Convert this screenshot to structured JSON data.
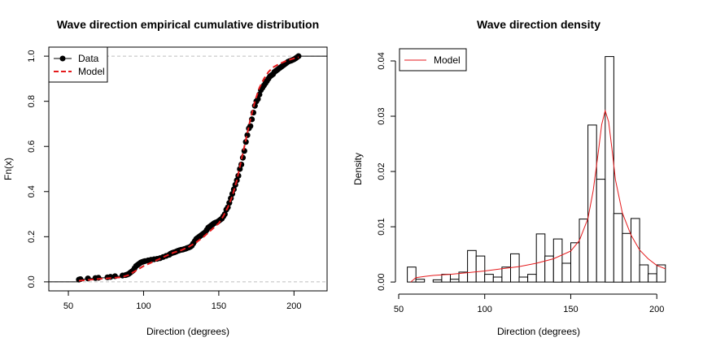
{
  "chart_data": [
    {
      "type": "line",
      "title": "Wave direction empirical cumulative distribution",
      "xlabel": "Direction (degrees)",
      "ylabel": "Fn(x)",
      "xlim": [
        37,
        222
      ],
      "ylim": [
        -0.04,
        1.04
      ],
      "x_ticks": [
        "50",
        "100",
        "150",
        "200"
      ],
      "y_ticks": [
        "0.0",
        "0.2",
        "0.4",
        "0.6",
        "0.8",
        "1.0"
      ],
      "legend_position": "top-left",
      "legend": [
        "Data",
        "Model"
      ],
      "colors": {
        "data": "#000000",
        "model": "#e41a1c",
        "ref_line": "#bebebe"
      },
      "series": [
        {
          "name": "Data",
          "x": [
            57,
            58,
            63,
            68,
            70,
            76,
            78,
            81,
            86,
            88,
            89,
            90,
            91,
            92,
            93,
            94,
            95,
            96,
            97,
            98,
            99,
            100,
            101,
            103,
            105,
            107,
            109,
            111,
            113,
            115,
            117,
            118,
            119,
            120,
            121,
            122,
            123,
            124,
            125,
            126,
            127,
            128,
            129,
            130,
            131,
            132,
            133,
            134,
            135,
            136,
            137,
            138,
            139,
            140,
            141,
            142,
            143,
            144,
            145,
            146,
            147,
            148,
            149,
            150,
            151,
            152,
            153,
            154,
            155,
            156,
            157,
            158,
            159,
            160,
            161,
            162,
            163,
            164,
            165,
            166,
            167,
            168,
            169,
            170,
            171,
            172,
            173,
            174,
            175,
            176,
            177,
            178,
            179,
            180,
            181,
            182,
            183,
            184,
            185,
            186,
            187,
            188,
            189,
            190,
            191,
            192,
            193,
            194,
            195,
            196,
            197,
            198,
            199,
            200,
            201,
            202,
            203
          ],
          "y": [
            0.01,
            0.012,
            0.015,
            0.017,
            0.018,
            0.02,
            0.022,
            0.025,
            0.028,
            0.03,
            0.032,
            0.035,
            0.04,
            0.045,
            0.05,
            0.06,
            0.07,
            0.075,
            0.08,
            0.085,
            0.088,
            0.09,
            0.092,
            0.095,
            0.098,
            0.1,
            0.102,
            0.105,
            0.11,
            0.115,
            0.12,
            0.125,
            0.128,
            0.13,
            0.132,
            0.135,
            0.138,
            0.14,
            0.142,
            0.143,
            0.145,
            0.147,
            0.15,
            0.152,
            0.155,
            0.16,
            0.17,
            0.18,
            0.19,
            0.195,
            0.2,
            0.205,
            0.21,
            0.215,
            0.22,
            0.23,
            0.24,
            0.245,
            0.25,
            0.255,
            0.26,
            0.263,
            0.265,
            0.27,
            0.275,
            0.28,
            0.29,
            0.3,
            0.32,
            0.33,
            0.35,
            0.37,
            0.39,
            0.41,
            0.43,
            0.45,
            0.47,
            0.5,
            0.52,
            0.55,
            0.58,
            0.62,
            0.65,
            0.68,
            0.69,
            0.72,
            0.75,
            0.78,
            0.8,
            0.81,
            0.83,
            0.85,
            0.86,
            0.87,
            0.88,
            0.89,
            0.9,
            0.91,
            0.915,
            0.92,
            0.93,
            0.935,
            0.94,
            0.945,
            0.95,
            0.955,
            0.96,
            0.965,
            0.97,
            0.975,
            0.978,
            0.98,
            0.983,
            0.986,
            0.99,
            0.995,
            1.0
          ]
        },
        {
          "name": "Model",
          "x": [
            57,
            65,
            75,
            85,
            90,
            95,
            100,
            105,
            110,
            115,
            120,
            125,
            130,
            135,
            140,
            145,
            150,
            153,
            156,
            159,
            162,
            165,
            168,
            171,
            174,
            177,
            180,
            183,
            186,
            190,
            195,
            200,
            203
          ],
          "y": [
            0.005,
            0.01,
            0.015,
            0.02,
            0.03,
            0.05,
            0.07,
            0.085,
            0.1,
            0.115,
            0.13,
            0.14,
            0.155,
            0.175,
            0.2,
            0.23,
            0.26,
            0.29,
            0.33,
            0.38,
            0.45,
            0.54,
            0.63,
            0.72,
            0.8,
            0.86,
            0.9,
            0.93,
            0.95,
            0.965,
            0.98,
            0.99,
            0.995
          ]
        }
      ]
    },
    {
      "type": "bar",
      "title": "Wave direction density",
      "xlabel": "Direction (degrees)",
      "ylabel": "Density",
      "xlim": [
        50,
        207
      ],
      "ylim": [
        -0.0016,
        0.0425
      ],
      "x_ticks": [
        "50",
        "100",
        "150",
        "200"
      ],
      "y_ticks": [
        "0.00",
        "0.01",
        "0.02",
        "0.03",
        "0.04"
      ],
      "legend_position": "top-left",
      "legend": [
        "Model"
      ],
      "colors": {
        "bars": "#ffffff",
        "bar_edge": "#000000",
        "model": "#e41a1c"
      },
      "bin_width": 5,
      "bins": [
        {
          "start": 55,
          "value": 0.0027
        },
        {
          "start": 60,
          "value": 0.0005
        },
        {
          "start": 65,
          "value": 0.0
        },
        {
          "start": 70,
          "value": 0.0004
        },
        {
          "start": 75,
          "value": 0.0014
        },
        {
          "start": 80,
          "value": 0.0005
        },
        {
          "start": 85,
          "value": 0.0018
        },
        {
          "start": 90,
          "value": 0.0057
        },
        {
          "start": 95,
          "value": 0.0047
        },
        {
          "start": 100,
          "value": 0.0014
        },
        {
          "start": 105,
          "value": 0.0009
        },
        {
          "start": 110,
          "value": 0.0027
        },
        {
          "start": 115,
          "value": 0.0051
        },
        {
          "start": 120,
          "value": 0.0009
        },
        {
          "start": 125,
          "value": 0.0014
        },
        {
          "start": 130,
          "value": 0.0087
        },
        {
          "start": 135,
          "value": 0.0047
        },
        {
          "start": 140,
          "value": 0.0078
        },
        {
          "start": 145,
          "value": 0.0034
        },
        {
          "start": 150,
          "value": 0.0071
        },
        {
          "start": 155,
          "value": 0.0114
        },
        {
          "start": 160,
          "value": 0.0284
        },
        {
          "start": 165,
          "value": 0.0186
        },
        {
          "start": 170,
          "value": 0.0408
        },
        {
          "start": 175,
          "value": 0.0124
        },
        {
          "start": 180,
          "value": 0.0088
        },
        {
          "start": 185,
          "value": 0.0115
        },
        {
          "start": 190,
          "value": 0.0031
        },
        {
          "start": 195,
          "value": 0.0015
        },
        {
          "start": 200,
          "value": 0.0031
        }
      ],
      "series": [
        {
          "name": "Model",
          "x": [
            57,
            60,
            65,
            70,
            80,
            90,
            100,
            110,
            120,
            130,
            140,
            150,
            155,
            160,
            163,
            166,
            168,
            170,
            172,
            174,
            176,
            180,
            185,
            190,
            195,
            200,
            205
          ],
          "y": [
            0.0,
            0.0008,
            0.001,
            0.0012,
            0.0014,
            0.0017,
            0.002,
            0.0024,
            0.0028,
            0.0034,
            0.0042,
            0.0056,
            0.0075,
            0.0115,
            0.0165,
            0.0235,
            0.0285,
            0.031,
            0.029,
            0.024,
            0.0185,
            0.0125,
            0.0085,
            0.0058,
            0.0042,
            0.003,
            0.0024
          ]
        }
      ]
    }
  ]
}
